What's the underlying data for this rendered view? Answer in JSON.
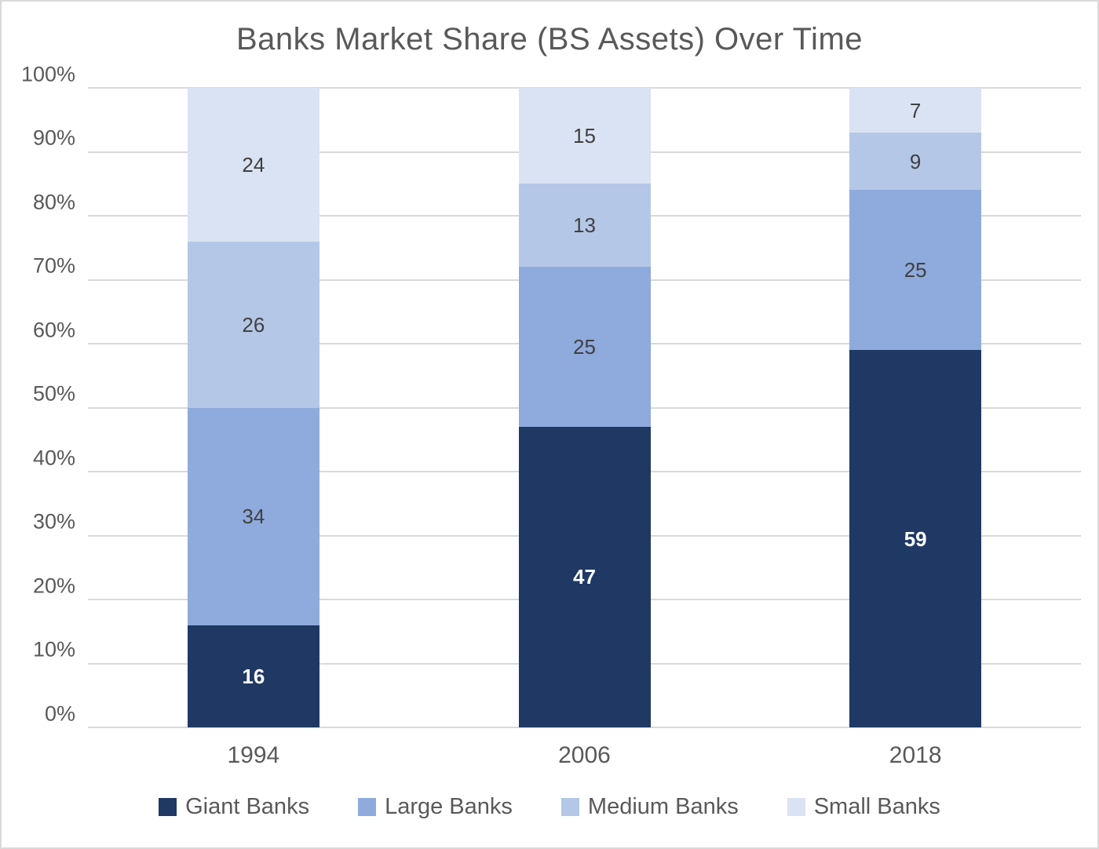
{
  "chart_data": {
    "type": "bar",
    "stacked": true,
    "title": "Banks Market Share (BS Assets) Over Time",
    "categories": [
      "1994",
      "2006",
      "2018"
    ],
    "series": [
      {
        "name": "Giant Banks",
        "values": [
          16,
          47,
          59
        ],
        "color": "#1F3864",
        "label_color": "#FFFFFF",
        "label_weight": "600"
      },
      {
        "name": "Large Banks",
        "values": [
          34,
          25,
          25
        ],
        "color": "#8FAADC",
        "label_color": "#404040",
        "label_weight": "400"
      },
      {
        "name": "Medium Banks",
        "values": [
          26,
          13,
          9
        ],
        "color": "#B4C7E7",
        "label_color": "#404040",
        "label_weight": "400"
      },
      {
        "name": "Small Banks",
        "values": [
          24,
          15,
          7
        ],
        "color": "#DAE3F3",
        "label_color": "#404040",
        "label_weight": "400"
      }
    ],
    "y_ticks": [
      "0%",
      "10%",
      "20%",
      "30%",
      "40%",
      "50%",
      "60%",
      "70%",
      "80%",
      "90%",
      "100%"
    ],
    "ylim": [
      0,
      100
    ],
    "xlabel": "",
    "ylabel": "",
    "grid": true,
    "legend_position": "bottom"
  },
  "styles": {
    "grid_color": "#D9D9D9",
    "axis_text_color": "#595959",
    "title_color": "#595959",
    "background": "#FFFFFF",
    "frame_border_color": "#D9D9D9"
  }
}
